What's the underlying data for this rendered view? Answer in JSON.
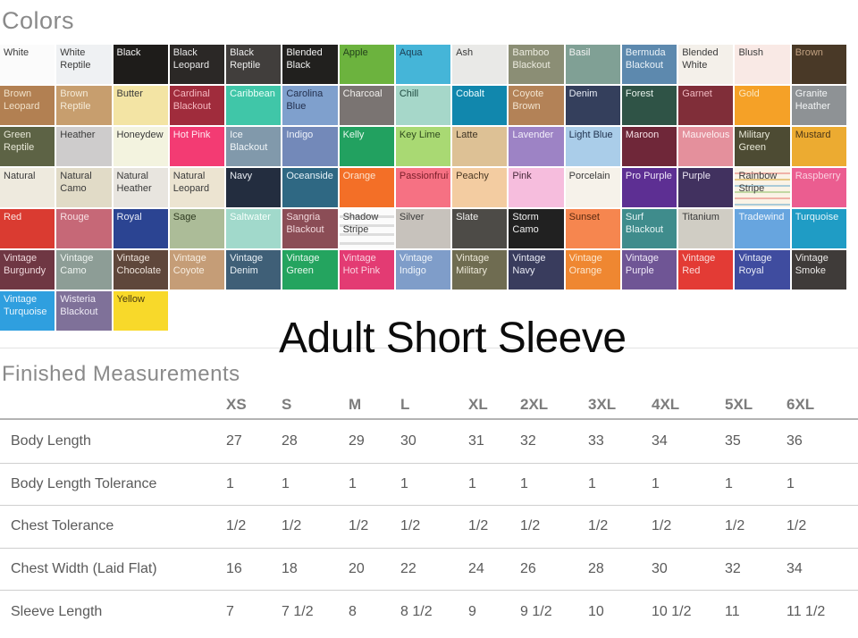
{
  "page": {
    "colors_heading": "Colors",
    "title": "Adult Short Sleeve",
    "measurements_heading": "Finished Measurements"
  },
  "colors": {
    "swatches": [
      {
        "name": "White",
        "bg": "#fbfbfb",
        "fg": "#3a3a3a"
      },
      {
        "name": "White Reptile",
        "bg": "#eff1f3",
        "fg": "#3a3a3a",
        "spot": "#dde2e8"
      },
      {
        "name": "Black",
        "bg": "#1e1c1a",
        "fg": "#f2f2f2"
      },
      {
        "name": "Black Leopard",
        "bg": "#2b2826",
        "fg": "#e8e8e8",
        "spot": "#141210"
      },
      {
        "name": "Black Reptile",
        "bg": "#413e3c",
        "fg": "#ececec",
        "spot": "#322f2d"
      },
      {
        "name": "Blended Black",
        "bg": "#21201e",
        "fg": "#f0f0f0"
      },
      {
        "name": "Apple",
        "bg": "#6cb33e",
        "fg": "#24421c"
      },
      {
        "name": "Aqua",
        "bg": "#45b5d8",
        "fg": "#1c3d52"
      },
      {
        "name": "Ash",
        "bg": "#e9e9e7",
        "fg": "#3a3a3a",
        "spot": "#dcdcd8"
      },
      {
        "name": "Bamboo Blackout",
        "bg": "#8b8e75",
        "fg": "#ecece0"
      },
      {
        "name": "Basil",
        "bg": "#80a095",
        "fg": "#f2f2f2"
      },
      {
        "name": "Bermuda Blackout",
        "bg": "#5d89ae",
        "fg": "#eaf2f8"
      },
      {
        "name": "Blended White",
        "bg": "#f4f0ea",
        "fg": "#3a3a3a"
      },
      {
        "name": "Blush",
        "bg": "#f9e9e5",
        "fg": "#3a3a3a"
      },
      {
        "name": "Brown",
        "bg": "#493927",
        "fg": "#c0a080"
      },
      {
        "name": "Brown Leopard",
        "bg": "#b28052",
        "fg": "#f0e0c8",
        "spot": "#935c2c"
      },
      {
        "name": "Brown Reptile",
        "bg": "#c79e6e",
        "fg": "#f5ebd8",
        "spot": "#ab7c42"
      },
      {
        "name": "Butter",
        "bg": "#f3e4a4",
        "fg": "#3a3a3a"
      },
      {
        "name": "Cardinal Blackout",
        "bg": "#a02c3c",
        "fg": "#f5b8c0"
      },
      {
        "name": "Caribbean",
        "bg": "#40c6a8",
        "fg": "#eafff8"
      },
      {
        "name": "Carolina Blue",
        "bg": "#7fa0cd",
        "fg": "#24304e"
      },
      {
        "name": "Charcoal",
        "bg": "#7a7472",
        "fg": "#f0eeec"
      },
      {
        "name": "Chill",
        "bg": "#a6d7c9",
        "fg": "#1f4a40"
      },
      {
        "name": "Cobalt",
        "bg": "#1187ad",
        "fg": "#edfdff"
      },
      {
        "name": "Coyote Brown",
        "bg": "#b38257",
        "fg": "#f2e4d0"
      },
      {
        "name": "Denim",
        "bg": "#343f5c",
        "fg": "#e8ecf5"
      },
      {
        "name": "Forest",
        "bg": "#2f5346",
        "fg": "#e6f0ea"
      },
      {
        "name": "Garnet",
        "bg": "#802e39",
        "fg": "#f0b8c0"
      },
      {
        "name": "Gold",
        "bg": "#f5a127",
        "fg": "#fce8c0"
      },
      {
        "name": "Granite Heather",
        "bg": "#8e9295",
        "fg": "#f2f4f5",
        "spot": "#80858a"
      },
      {
        "name": "Green Reptile",
        "bg": "#5d6345",
        "fg": "#e8e8d8",
        "spot": "#494f2f"
      },
      {
        "name": "Heather",
        "bg": "#cecccc",
        "fg": "#3a3a3a",
        "spot": "#bfbdbd"
      },
      {
        "name": "Honeydew",
        "bg": "#f3f3df",
        "fg": "#3a3a3a"
      },
      {
        "name": "Hot Pink",
        "bg": "#f33b73",
        "fg": "#ffe8f0"
      },
      {
        "name": "Ice Blackout",
        "bg": "#8199ab",
        "fg": "#f0f5f8"
      },
      {
        "name": "Indigo",
        "bg": "#7389b9",
        "fg": "#eef2fa"
      },
      {
        "name": "Kelly",
        "bg": "#22a160",
        "fg": "#e8f8ee"
      },
      {
        "name": "Key Lime",
        "bg": "#a9d973",
        "fg": "#2e4a1e"
      },
      {
        "name": "Latte",
        "bg": "#ddc195",
        "fg": "#3e3424"
      },
      {
        "name": "Lavender",
        "bg": "#9d83c5",
        "fg": "#f2eefa"
      },
      {
        "name": "Light Blue",
        "bg": "#aacde9",
        "fg": "#223450"
      },
      {
        "name": "Maroon",
        "bg": "#6f2739",
        "fg": "#f5e0e6"
      },
      {
        "name": "Mauvelous",
        "bg": "#e4909c",
        "fg": "#fdf0f2"
      },
      {
        "name": "Military Green",
        "bg": "#4d4b33",
        "fg": "#e8e8d8"
      },
      {
        "name": "Mustard",
        "bg": "#ecab31",
        "fg": "#4a3618"
      },
      {
        "name": "Natural",
        "bg": "#eeeade",
        "fg": "#3a3a3a"
      },
      {
        "name": "Natural Camo",
        "bg": "#e1dbc7",
        "fg": "#3a3a3a",
        "spot": "#cdc5a6"
      },
      {
        "name": "Natural Heather",
        "bg": "#e8e5df",
        "fg": "#3a3a3a",
        "spot": "#dcd8d0"
      },
      {
        "name": "Natural Leopard",
        "bg": "#ece4d1",
        "fg": "#3a3a3a",
        "spot": "#dbcda6"
      },
      {
        "name": "Navy",
        "bg": "#232d3f",
        "fg": "#e8ecf2"
      },
      {
        "name": "Oceanside",
        "bg": "#2f6883",
        "fg": "#e6f2f8"
      },
      {
        "name": "Orange",
        "bg": "#f36f27",
        "fg": "#fce4d0"
      },
      {
        "name": "Passionfruit",
        "bg": "#f67183",
        "fg": "#7a1f2a"
      },
      {
        "name": "Peachy",
        "bg": "#f3cca1",
        "fg": "#4a3824"
      },
      {
        "name": "Pink",
        "bg": "#f6bddd",
        "fg": "#4a2a3c"
      },
      {
        "name": "Porcelain",
        "bg": "#f6f2ea",
        "fg": "#3a3a3a"
      },
      {
        "name": "Pro Purple",
        "bg": "#5d2f93",
        "fg": "#eee6f8"
      },
      {
        "name": "Purple",
        "bg": "#41315f",
        "fg": "#eae4f2"
      },
      {
        "name": "Rainbow Stripe",
        "bg": "#faf3e6",
        "fg": "#3a3a3a",
        "stripes": "rainbow"
      },
      {
        "name": "Raspberry",
        "bg": "#eb5d90",
        "fg": "#fad0e0"
      },
      {
        "name": "Red",
        "bg": "#da3b31",
        "fg": "#fae4e0"
      },
      {
        "name": "Rouge",
        "bg": "#c66877",
        "fg": "#f8e0e4"
      },
      {
        "name": "Royal",
        "bg": "#2b4492",
        "fg": "#e8ecf8"
      },
      {
        "name": "Sage",
        "bg": "#acbc98",
        "fg": "#2e3a20"
      },
      {
        "name": "Saltwater",
        "bg": "#a1d9cb",
        "fg": "#f4fffb"
      },
      {
        "name": "Sangria Blackout",
        "bg": "#8b4d56",
        "fg": "#f2d8dc"
      },
      {
        "name": "Shadow Stripe",
        "bg": "#fbfbfb",
        "fg": "#3a3a3a",
        "stripes": "shadow"
      },
      {
        "name": "Silver",
        "bg": "#c7c2bc",
        "fg": "#3a3a3a",
        "spot": "#bab4ae"
      },
      {
        "name": "Slate",
        "bg": "#4d4b47",
        "fg": "#f0f0ee"
      },
      {
        "name": "Storm Camo",
        "bg": "#212121",
        "fg": "#f0f0f0",
        "spot": "#0a0a0a"
      },
      {
        "name": "Sunset",
        "bg": "#f6864f",
        "fg": "#5a2a10"
      },
      {
        "name": "Surf Blackout",
        "bg": "#3f8c8c",
        "fg": "#e6f5f5"
      },
      {
        "name": "Titanium",
        "bg": "#d0cdc4",
        "fg": "#3a3a3a"
      },
      {
        "name": "Tradewind",
        "bg": "#67a5df",
        "fg": "#eef5fc"
      },
      {
        "name": "Turquoise",
        "bg": "#1f9cc5",
        "fg": "#e6f5fa"
      },
      {
        "name": "Vintage Burgundy",
        "bg": "#6f3743",
        "fg": "#f0d8dc"
      },
      {
        "name": "Vintage Camo",
        "bg": "#8d9d96",
        "fg": "#eef4f0",
        "spot": "#76897f"
      },
      {
        "name": "Vintage Chocolate",
        "bg": "#5f473b",
        "fg": "#efe4dc"
      },
      {
        "name": "Vintage Coyote",
        "bg": "#c59d77",
        "fg": "#f7ede0"
      },
      {
        "name": "Vintage Denim",
        "bg": "#3f5f77",
        "fg": "#e8f0f6"
      },
      {
        "name": "Vintage Green",
        "bg": "#24a45f",
        "fg": "#e6f8ee"
      },
      {
        "name": "Vintage Hot Pink",
        "bg": "#e33b73",
        "fg": "#fad0de"
      },
      {
        "name": "Vintage Indigo",
        "bg": "#7f9dc9",
        "fg": "#eef4fa"
      },
      {
        "name": "Vintage Military",
        "bg": "#6f6c51",
        "fg": "#eeeada"
      },
      {
        "name": "Vintage Navy",
        "bg": "#393c5d",
        "fg": "#e8eaf4"
      },
      {
        "name": "Vintage Orange",
        "bg": "#ef8731",
        "fg": "#fce8d0",
        "spot": "#dd7218"
      },
      {
        "name": "Vintage Purple",
        "bg": "#6f5595",
        "fg": "#efe8f8"
      },
      {
        "name": "Vintage Red",
        "bg": "#e33b35",
        "fg": "#fadcda"
      },
      {
        "name": "Vintage Royal",
        "bg": "#3f4c9f",
        "fg": "#e8ecf8"
      },
      {
        "name": "Vintage Smoke",
        "bg": "#3f3b39",
        "fg": "#eceae8"
      },
      {
        "name": "Vintage Turquoise",
        "bg": "#2f9fdf",
        "fg": "#eaf5fc"
      },
      {
        "name": "Wisteria Blackout",
        "bg": "#7f7199",
        "fg": "#eeeaf5"
      },
      {
        "name": "Yellow",
        "bg": "#f8d92a",
        "fg": "#4a3c10"
      }
    ]
  },
  "measurements": {
    "sizes": [
      "XS",
      "S",
      "M",
      "L",
      "XL",
      "2XL",
      "3XL",
      "4XL",
      "5XL",
      "6XL"
    ],
    "rows": [
      {
        "label": "Body Length",
        "values": [
          "27",
          "28",
          "29",
          "30",
          "31",
          "32",
          "33",
          "34",
          "35",
          "36"
        ]
      },
      {
        "label": "Body Length Tolerance",
        "values": [
          "1",
          "1",
          "1",
          "1",
          "1",
          "1",
          "1",
          "1",
          "1",
          "1"
        ]
      },
      {
        "label": "Chest Tolerance",
        "values": [
          "1/2",
          "1/2",
          "1/2",
          "1/2",
          "1/2",
          "1/2",
          "1/2",
          "1/2",
          "1/2",
          "1/2"
        ]
      },
      {
        "label": "Chest Width (Laid Flat)",
        "values": [
          "16",
          "18",
          "20",
          "22",
          "24",
          "26",
          "28",
          "30",
          "32",
          "34"
        ]
      },
      {
        "label": "Sleeve Length",
        "values": [
          "7",
          "7 1/2",
          "8",
          "8 1/2",
          "9",
          "9 1/2",
          "10",
          "10 1/2",
          "11",
          "11 1/2"
        ]
      }
    ]
  }
}
